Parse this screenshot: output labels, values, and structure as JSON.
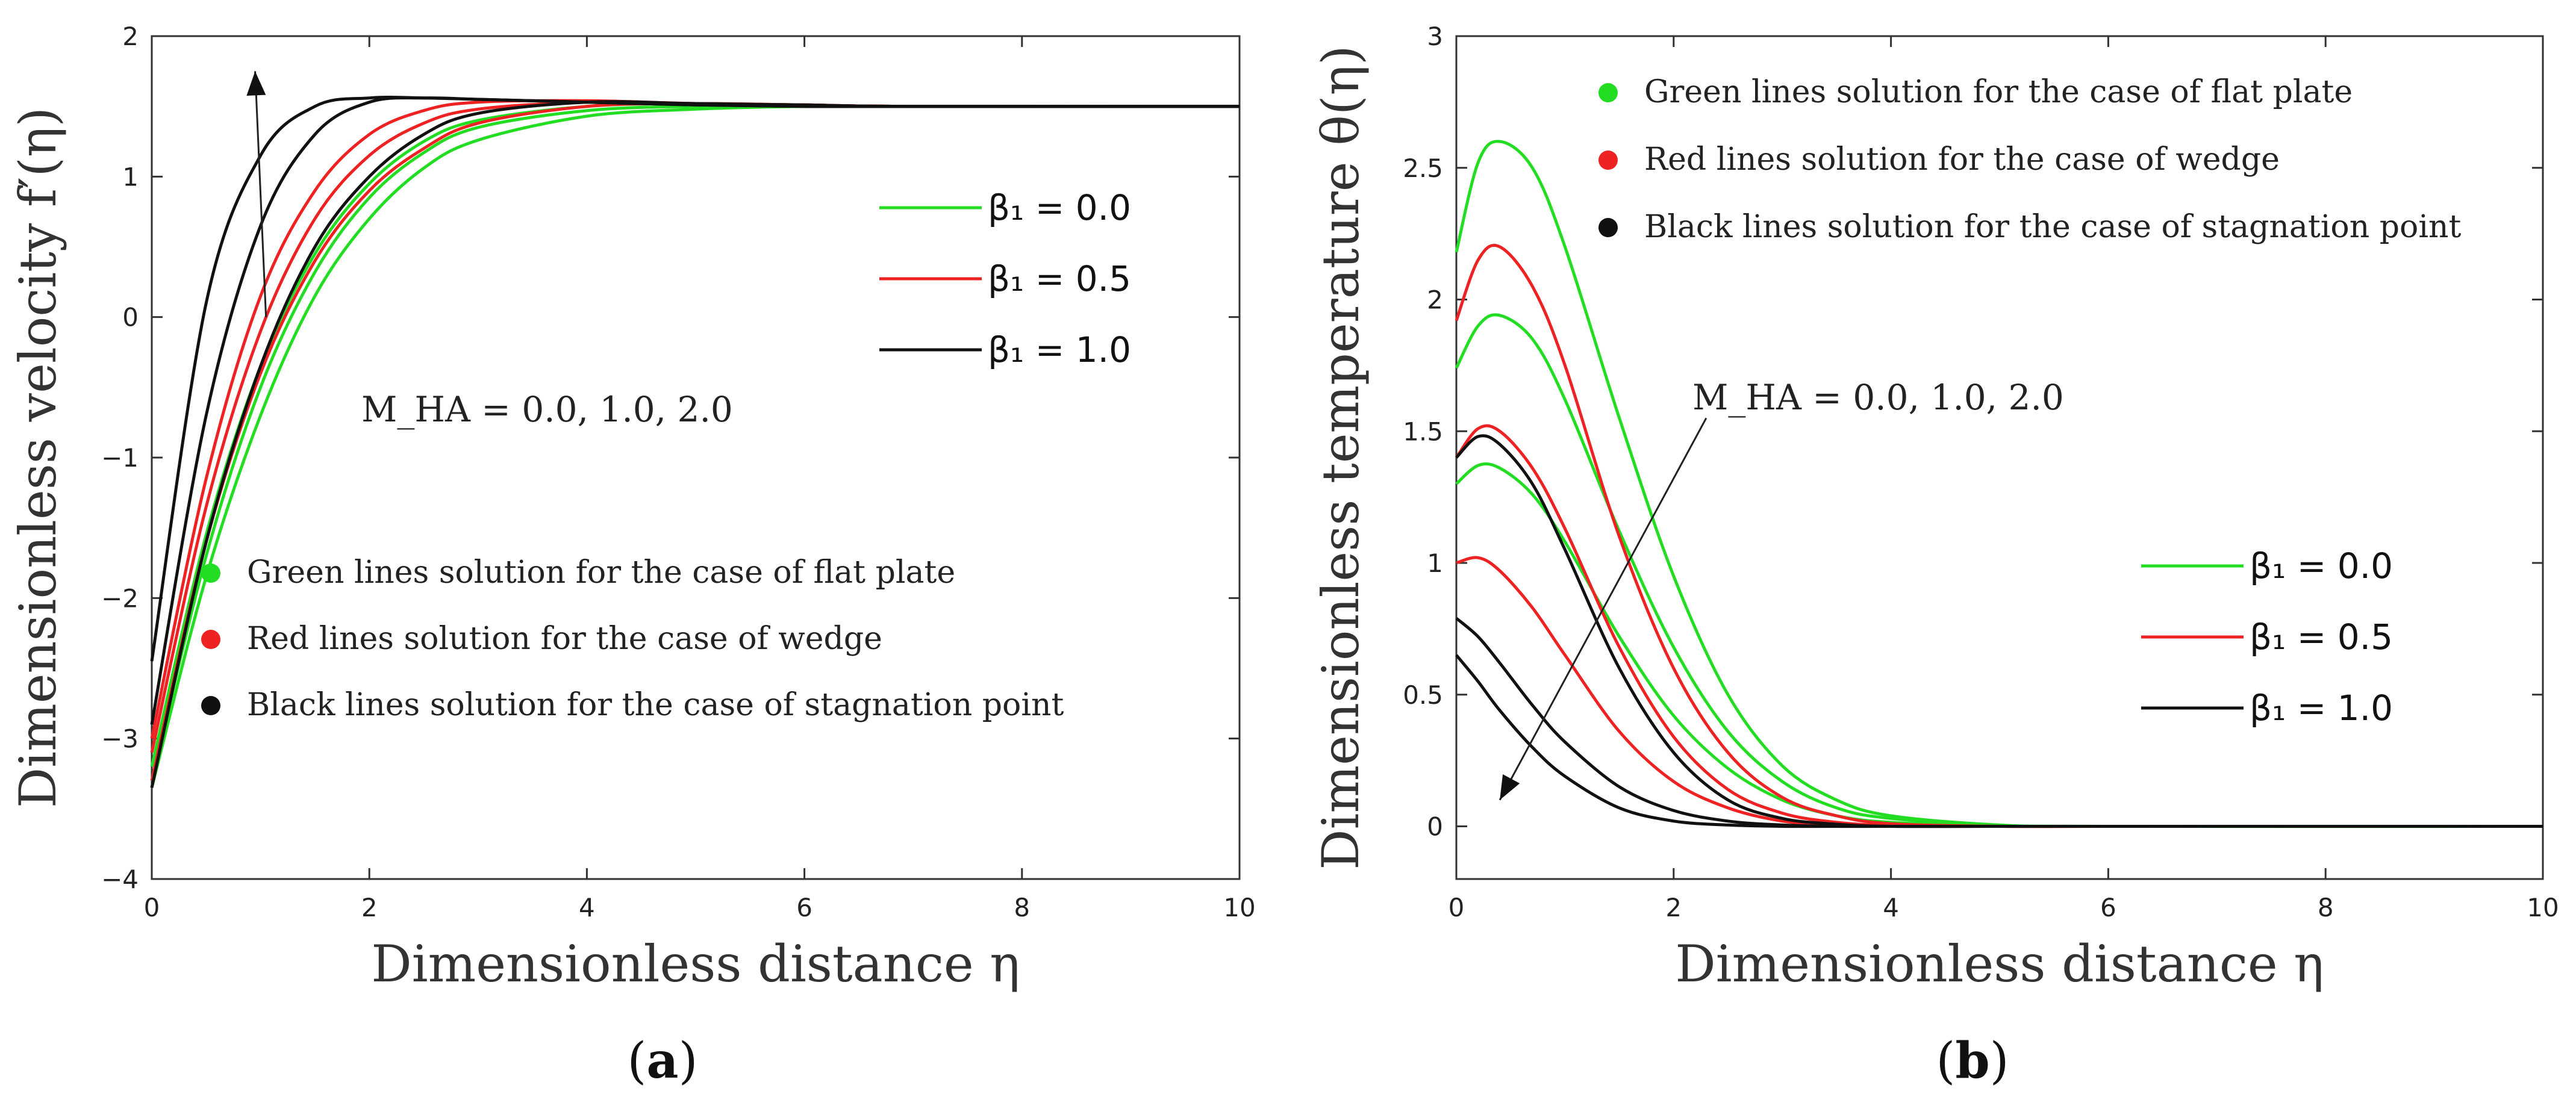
{
  "chart_data": [
    {
      "type": "line",
      "panel": "(a)",
      "panel_letter": "a",
      "xlabel": "Dimensionless distance η",
      "ylabel": "Dimensionless velocity f′(η)",
      "xlim": [
        0,
        10
      ],
      "ylim": [
        -4,
        2
      ],
      "xticks": [
        "0",
        "2",
        "4",
        "6",
        "8",
        "10"
      ],
      "yticks": [
        "−4",
        "−3",
        "−2",
        "−1",
        "0",
        "1",
        "2"
      ],
      "grid": false,
      "annotation": "M_HA = 0.0, 1.0, 2.0",
      "annotation_arrow": {
        "from": [
          1.05,
          0.0
        ],
        "to": [
          0.95,
          1.75
        ]
      },
      "legend_beta": [
        {
          "label": "β₁ = 0.0",
          "color": "#22dd22"
        },
        {
          "label": "β₁ = 0.5",
          "color": "#ee2222"
        },
        {
          "label": "β₁ = 1.0",
          "color": "#111111"
        }
      ],
      "legend_cases": [
        {
          "label": "Green lines solution for the case of flat plate",
          "color": "#22dd22"
        },
        {
          "label": "Red lines solution for the case of wedge",
          "color": "#ee2222"
        },
        {
          "label": "Black lines solution for the case of stagnation point",
          "color": "#111111"
        }
      ],
      "series": [
        {
          "color": "#22dd22",
          "x": [
            0,
            0.5,
            1,
            1.5,
            2,
            2.5,
            3,
            4,
            5,
            6,
            7,
            10
          ],
          "y": [
            -3.35,
            -1.85,
            -0.7,
            0.15,
            0.7,
            1.06,
            1.26,
            1.43,
            1.48,
            1.5,
            1.5,
            1.5
          ]
        },
        {
          "color": "#22dd22",
          "x": [
            0,
            0.5,
            1,
            1.5,
            2,
            2.5,
            3,
            4,
            5,
            6,
            7,
            10
          ],
          "y": [
            -3.3,
            -1.7,
            -0.5,
            0.32,
            0.85,
            1.17,
            1.35,
            1.47,
            1.5,
            1.5,
            1.5,
            1.5
          ]
        },
        {
          "color": "#22dd22",
          "x": [
            0,
            0.5,
            1,
            1.5,
            2,
            2.5,
            3,
            4,
            5,
            6,
            7,
            10
          ],
          "y": [
            -3.2,
            -1.55,
            -0.35,
            0.45,
            0.95,
            1.25,
            1.4,
            1.5,
            1.52,
            1.51,
            1.5,
            1.5
          ]
        },
        {
          "color": "#ee2222",
          "x": [
            0,
            0.5,
            1,
            1.5,
            2,
            2.5,
            3,
            4,
            5,
            6,
            7,
            10
          ],
          "y": [
            -3.3,
            -1.6,
            -0.4,
            0.4,
            0.9,
            1.2,
            1.38,
            1.5,
            1.52,
            1.51,
            1.5,
            1.5
          ]
        },
        {
          "color": "#ee2222",
          "x": [
            0,
            0.5,
            1,
            1.5,
            2,
            2.5,
            3,
            4,
            5,
            6,
            7,
            10
          ],
          "y": [
            -3.1,
            -1.35,
            -0.1,
            0.7,
            1.15,
            1.38,
            1.48,
            1.53,
            1.52,
            1.51,
            1.5,
            1.5
          ]
        },
        {
          "color": "#ee2222",
          "x": [
            0,
            0.5,
            1,
            1.5,
            2,
            2.5,
            3,
            4,
            5,
            6,
            7,
            10
          ],
          "y": [
            -3.0,
            -1.15,
            0.15,
            0.9,
            1.3,
            1.47,
            1.53,
            1.54,
            1.52,
            1.51,
            1.5,
            1.5
          ]
        },
        {
          "color": "#111111",
          "x": [
            0,
            0.5,
            1,
            1.5,
            2,
            2.5,
            3,
            4,
            5,
            6,
            7,
            10
          ],
          "y": [
            -3.35,
            -1.6,
            -0.35,
            0.5,
            1.0,
            1.3,
            1.45,
            1.53,
            1.52,
            1.51,
            1.5,
            1.5
          ]
        },
        {
          "color": "#111111",
          "x": [
            0,
            0.5,
            1,
            1.5,
            2,
            2.5,
            3,
            4,
            5,
            6,
            7,
            10
          ],
          "y": [
            -2.9,
            -0.7,
            0.65,
            1.3,
            1.53,
            1.56,
            1.55,
            1.53,
            1.51,
            1.5,
            1.5,
            1.5
          ]
        },
        {
          "color": "#111111",
          "x": [
            0,
            0.5,
            1,
            1.5,
            2,
            2.5,
            3,
            4,
            5,
            6,
            7,
            10
          ],
          "y": [
            -2.45,
            0.1,
            1.15,
            1.5,
            1.56,
            1.56,
            1.55,
            1.53,
            1.51,
            1.5,
            1.5,
            1.5
          ]
        }
      ]
    },
    {
      "type": "line",
      "panel": "(b)",
      "panel_letter": "b",
      "xlabel": "Dimensionless distance η",
      "ylabel": "Dimensionless temperature θ(η)",
      "xlim": [
        0,
        10
      ],
      "ylim": [
        -0.2,
        3
      ],
      "xticks": [
        "0",
        "2",
        "4",
        "6",
        "8",
        "10"
      ],
      "yticks": [
        "0",
        "0.5",
        "1",
        "1.5",
        "2",
        "2.5",
        "3"
      ],
      "grid": false,
      "annotation": "M_HA = 0.0, 1.0, 2.0",
      "annotation_arrow": {
        "from": [
          2.3,
          1.55
        ],
        "to": [
          0.4,
          0.1
        ]
      },
      "legend_beta": [
        {
          "label": "β₁ = 0.0",
          "color": "#22dd22"
        },
        {
          "label": "β₁ = 0.5",
          "color": "#ee2222"
        },
        {
          "label": "β₁ = 1.0",
          "color": "#111111"
        }
      ],
      "legend_cases": [
        {
          "label": "Green lines solution for the case of flat plate",
          "color": "#22dd22"
        },
        {
          "label": "Red lines solution for the case of wedge",
          "color": "#ee2222"
        },
        {
          "label": "Black lines solution for the case of stagnation point",
          "color": "#111111"
        }
      ],
      "series": [
        {
          "color": "#22dd22",
          "x": [
            0,
            0.2,
            0.4,
            0.7,
            1,
            1.5,
            2,
            2.5,
            3,
            3.5,
            4,
            5,
            6,
            10
          ],
          "y": [
            2.18,
            2.52,
            2.6,
            2.5,
            2.2,
            1.55,
            0.95,
            0.5,
            0.23,
            0.1,
            0.04,
            0.005,
            0,
            0
          ]
        },
        {
          "color": "#22dd22",
          "x": [
            0,
            0.2,
            0.4,
            0.7,
            1,
            1.5,
            2,
            2.5,
            3,
            3.5,
            4,
            5,
            6,
            10
          ],
          "y": [
            1.74,
            1.9,
            1.94,
            1.85,
            1.62,
            1.12,
            0.68,
            0.36,
            0.17,
            0.07,
            0.03,
            0.004,
            0,
            0
          ]
        },
        {
          "color": "#22dd22",
          "x": [
            0,
            0.2,
            0.4,
            0.7,
            1,
            1.5,
            2,
            2.5,
            3,
            3.5,
            4,
            5,
            6,
            10
          ],
          "y": [
            1.3,
            1.37,
            1.36,
            1.26,
            1.08,
            0.72,
            0.42,
            0.22,
            0.1,
            0.04,
            0.015,
            0.002,
            0,
            0
          ]
        },
        {
          "color": "#ee2222",
          "x": [
            0,
            0.2,
            0.4,
            0.7,
            1,
            1.5,
            2,
            2.5,
            3,
            3.5,
            4,
            5,
            6,
            10
          ],
          "y": [
            1.92,
            2.15,
            2.2,
            2.05,
            1.75,
            1.1,
            0.6,
            0.28,
            0.11,
            0.04,
            0.01,
            0,
            0,
            0
          ]
        },
        {
          "color": "#ee2222",
          "x": [
            0,
            0.2,
            0.4,
            0.7,
            1,
            1.5,
            2,
            2.5,
            3,
            3.5,
            4,
            5,
            6,
            10
          ],
          "y": [
            1.4,
            1.51,
            1.5,
            1.36,
            1.13,
            0.68,
            0.34,
            0.14,
            0.05,
            0.015,
            0.004,
            0,
            0,
            0
          ]
        },
        {
          "color": "#ee2222",
          "x": [
            0,
            0.2,
            0.4,
            0.7,
            1,
            1.5,
            2,
            2.5,
            3,
            3.5,
            4,
            5,
            6,
            10
          ],
          "y": [
            1.0,
            1.02,
            0.97,
            0.83,
            0.65,
            0.36,
            0.17,
            0.07,
            0.02,
            0.005,
            0,
            0,
            0,
            0
          ]
        },
        {
          "color": "#111111",
          "x": [
            0,
            0.2,
            0.4,
            0.7,
            1,
            1.5,
            2,
            2.5,
            3,
            3.5,
            4,
            5,
            6,
            10
          ],
          "y": [
            1.4,
            1.48,
            1.45,
            1.3,
            1.05,
            0.6,
            0.28,
            0.1,
            0.03,
            0.008,
            0,
            0,
            0,
            0
          ]
        },
        {
          "color": "#111111",
          "x": [
            0,
            0.2,
            0.4,
            0.7,
            1,
            1.5,
            2,
            2.5,
            3,
            3.5,
            4,
            5,
            6,
            10
          ],
          "y": [
            0.79,
            0.72,
            0.62,
            0.46,
            0.32,
            0.15,
            0.06,
            0.02,
            0.005,
            0,
            0,
            0,
            0,
            0
          ]
        },
        {
          "color": "#111111",
          "x": [
            0,
            0.2,
            0.4,
            0.7,
            1,
            1.5,
            2,
            2.5,
            3,
            3.5,
            4,
            5,
            6,
            10
          ],
          "y": [
            0.65,
            0.55,
            0.44,
            0.3,
            0.19,
            0.07,
            0.02,
            0.005,
            0,
            0,
            0,
            0,
            0,
            0
          ]
        }
      ]
    }
  ]
}
